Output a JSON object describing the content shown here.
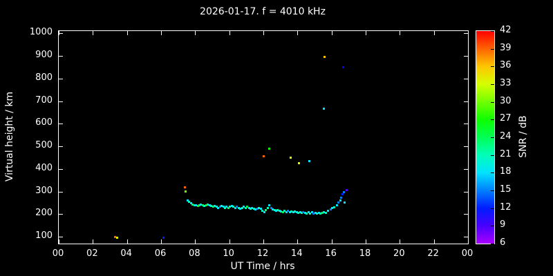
{
  "title": "2026-01-17. f = 4010 kHz",
  "chart_data": {
    "type": "scatter",
    "title": "2026-01-17. f = 4010 kHz",
    "xlabel": "UT Time / hrs",
    "ylabel": "Virtual height / km",
    "xlim": [
      0,
      24
    ],
    "ylim": [
      70,
      1010
    ],
    "background": "#000000",
    "axis_color": "#ffffff",
    "x_ticks": [
      {
        "label": "00",
        "value": 0
      },
      {
        "label": "02",
        "value": 2
      },
      {
        "label": "04",
        "value": 4
      },
      {
        "label": "06",
        "value": 6
      },
      {
        "label": "08",
        "value": 8
      },
      {
        "label": "10",
        "value": 10
      },
      {
        "label": "12",
        "value": 12
      },
      {
        "label": "14",
        "value": 14
      },
      {
        "label": "16",
        "value": 16
      },
      {
        "label": "18",
        "value": 18
      },
      {
        "label": "20",
        "value": 20
      },
      {
        "label": "22",
        "value": 22
      },
      {
        "label": "00",
        "value": 24
      }
    ],
    "y_ticks": [
      {
        "label": "1000",
        "value": 1000
      },
      {
        "label": "900",
        "value": 900
      },
      {
        "label": "800",
        "value": 800
      },
      {
        "label": "700",
        "value": 700
      },
      {
        "label": "600",
        "value": 600
      },
      {
        "label": "500",
        "value": 500
      },
      {
        "label": "400",
        "value": 400
      },
      {
        "label": "300",
        "value": 300
      },
      {
        "label": "200",
        "value": 200
      },
      {
        "label": "100",
        "value": 100
      }
    ],
    "colorbar": {
      "label": "SNR / dB",
      "min": 6,
      "max": 42,
      "ticks": [
        42,
        39,
        36,
        33,
        30,
        27,
        24,
        21,
        18,
        15,
        12,
        9,
        6
      ]
    },
    "point_fields": [
      "ut_hr",
      "virtual_height_km",
      "snr_db"
    ],
    "points": [
      [
        3.3,
        100,
        39
      ],
      [
        3.42,
        97,
        33
      ],
      [
        6.15,
        95,
        12
      ],
      [
        7.4,
        318,
        39
      ],
      [
        7.45,
        300,
        30
      ],
      [
        7.55,
        262,
        18
      ],
      [
        7.65,
        255,
        21
      ],
      [
        7.75,
        248,
        18
      ],
      [
        7.85,
        243,
        24
      ],
      [
        7.95,
        238,
        21
      ],
      [
        8.05,
        240,
        18
      ],
      [
        8.15,
        236,
        27
      ],
      [
        8.25,
        238,
        21
      ],
      [
        8.35,
        242,
        18
      ],
      [
        8.45,
        238,
        24
      ],
      [
        8.55,
        235,
        21
      ],
      [
        8.65,
        240,
        27
      ],
      [
        8.75,
        243,
        21
      ],
      [
        8.85,
        238,
        18
      ],
      [
        8.95,
        235,
        21
      ],
      [
        9.05,
        232,
        24
      ],
      [
        9.15,
        236,
        18
      ],
      [
        9.25,
        232,
        21
      ],
      [
        9.35,
        228,
        18
      ],
      [
        9.45,
        232,
        15
      ],
      [
        9.55,
        236,
        21
      ],
      [
        9.65,
        232,
        18
      ],
      [
        9.75,
        228,
        21
      ],
      [
        9.85,
        232,
        18
      ],
      [
        9.95,
        228,
        24
      ],
      [
        10.05,
        232,
        21
      ],
      [
        10.15,
        236,
        18
      ],
      [
        10.25,
        232,
        21
      ],
      [
        10.35,
        228,
        18
      ],
      [
        10.45,
        232,
        15
      ],
      [
        10.55,
        228,
        21
      ],
      [
        10.65,
        224,
        18
      ],
      [
        10.75,
        228,
        21
      ],
      [
        10.85,
        232,
        18
      ],
      [
        10.95,
        228,
        21
      ],
      [
        11.05,
        232,
        24
      ],
      [
        11.15,
        228,
        18
      ],
      [
        11.25,
        224,
        21
      ],
      [
        11.35,
        228,
        18
      ],
      [
        11.45,
        224,
        21
      ],
      [
        11.55,
        220,
        18
      ],
      [
        11.65,
        224,
        15
      ],
      [
        11.75,
        228,
        21
      ],
      [
        11.85,
        224,
        18
      ],
      [
        11.95,
        214,
        21
      ],
      [
        12.05,
        210,
        18
      ],
      [
        12.15,
        218,
        24
      ],
      [
        12.25,
        228,
        21
      ],
      [
        12.35,
        238,
        18
      ],
      [
        12.45,
        228,
        15
      ],
      [
        12.55,
        222,
        18
      ],
      [
        12.65,
        218,
        21
      ],
      [
        12.75,
        214,
        18
      ],
      [
        12.85,
        218,
        21
      ],
      [
        12.95,
        214,
        18
      ],
      [
        13.05,
        212,
        21
      ],
      [
        13.15,
        210,
        24
      ],
      [
        13.25,
        214,
        21
      ],
      [
        13.35,
        210,
        18
      ],
      [
        13.45,
        214,
        15
      ],
      [
        13.55,
        210,
        18
      ],
      [
        13.65,
        212,
        21
      ],
      [
        13.75,
        208,
        18
      ],
      [
        13.85,
        212,
        21
      ],
      [
        13.95,
        208,
        18
      ],
      [
        14.05,
        206,
        21
      ],
      [
        14.15,
        210,
        18
      ],
      [
        14.25,
        206,
        21
      ],
      [
        14.35,
        210,
        15
      ],
      [
        14.45,
        206,
        18
      ],
      [
        14.55,
        204,
        21
      ],
      [
        14.65,
        208,
        18
      ],
      [
        14.75,
        204,
        21
      ],
      [
        14.85,
        208,
        18
      ],
      [
        14.95,
        204,
        15
      ],
      [
        15.05,
        206,
        18
      ],
      [
        15.15,
        202,
        21
      ],
      [
        15.25,
        206,
        18
      ],
      [
        15.35,
        202,
        21
      ],
      [
        15.45,
        206,
        24
      ],
      [
        15.55,
        210,
        18
      ],
      [
        15.65,
        206,
        21
      ],
      [
        15.8,
        214,
        18
      ],
      [
        15.95,
        220,
        15
      ],
      [
        16.05,
        226,
        18
      ],
      [
        16.15,
        230,
        21
      ],
      [
        16.3,
        240,
        18
      ],
      [
        16.4,
        252,
        15
      ],
      [
        16.5,
        262,
        18
      ],
      [
        16.58,
        274,
        15
      ],
      [
        16.65,
        288,
        12
      ],
      [
        16.72,
        298,
        15
      ],
      [
        16.78,
        252,
        18
      ],
      [
        16.9,
        308,
        9
      ],
      [
        12.0,
        455,
        39
      ],
      [
        12.35,
        490,
        27
      ],
      [
        13.6,
        450,
        33
      ],
      [
        14.1,
        425,
        33
      ],
      [
        14.7,
        435,
        18
      ],
      [
        15.55,
        668,
        18
      ],
      [
        15.6,
        895,
        36
      ],
      [
        16.7,
        850,
        11
      ]
    ]
  }
}
